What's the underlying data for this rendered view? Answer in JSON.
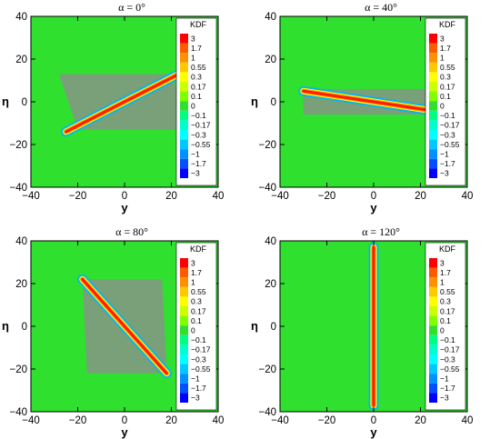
{
  "chart_data": [
    {
      "type": "heatmap",
      "title": "α = 0°",
      "xlabel": "y",
      "ylabel": "η",
      "xlim": [
        -40,
        40
      ],
      "ylim": [
        -40,
        40
      ],
      "xticks": [
        -40,
        -20,
        0,
        20,
        40
      ],
      "yticks": [
        -40,
        -20,
        0,
        20,
        40
      ],
      "xtick_labels": [
        "−40",
        "−20",
        "0",
        "20",
        "40"
      ],
      "ytick_labels": [
        "−40",
        "−20",
        "0",
        "20",
        "40"
      ],
      "background_value": 0,
      "band": {
        "from": [
          -25,
          -14
        ],
        "to": [
          25,
          14
        ]
      },
      "envelope": [
        [
          -28,
          13
        ],
        [
          20,
          13
        ],
        [
          28,
          -13
        ],
        [
          -20,
          -13
        ]
      ],
      "colorbar": {
        "title": "KDF",
        "levels": [
          "3",
          "1.7",
          "1",
          "0.55",
          "0.3",
          "0.17",
          "0.1",
          "0",
          "−0.1",
          "−0.17",
          "−0.3",
          "−0.55",
          "−1",
          "−1.7",
          "−3"
        ]
      }
    },
    {
      "type": "heatmap",
      "title": "α = 40°",
      "xlabel": "y",
      "ylabel": "η",
      "xlim": [
        -40,
        40
      ],
      "ylim": [
        -40,
        40
      ],
      "xticks": [
        -40,
        -20,
        0,
        20,
        40
      ],
      "yticks": [
        -40,
        -20,
        0,
        20,
        40
      ],
      "xtick_labels": [
        "−40",
        "−20",
        "0",
        "20",
        "40"
      ],
      "ytick_labels": [
        "−40",
        "−20",
        "0",
        "20",
        "40"
      ],
      "background_value": 0,
      "band": {
        "from": [
          -30,
          5
        ],
        "to": [
          30,
          -5
        ]
      },
      "envelope": [
        [
          -30,
          6
        ],
        [
          30,
          6
        ],
        [
          30,
          -6
        ],
        [
          -30,
          -6
        ]
      ],
      "colorbar": {
        "title": "KDF",
        "levels": [
          "3",
          "1.7",
          "1",
          "0.55",
          "0.3",
          "0.17",
          "0.1",
          "0",
          "−0.1",
          "−0.17",
          "−0.3",
          "−0.55",
          "−1",
          "−1.7",
          "−3"
        ]
      }
    },
    {
      "type": "heatmap",
      "title": "α = 80°",
      "xlabel": "y",
      "ylabel": "η",
      "xlim": [
        -40,
        40
      ],
      "ylim": [
        -40,
        40
      ],
      "xticks": [
        -40,
        -20,
        0,
        20,
        40
      ],
      "yticks": [
        -40,
        -20,
        0,
        20,
        40
      ],
      "xtick_labels": [
        "−40",
        "−20",
        "0",
        "20",
        "40"
      ],
      "ytick_labels": [
        "−40",
        "−20",
        "0",
        "20",
        "40"
      ],
      "background_value": 0,
      "band": {
        "from": [
          -18,
          22
        ],
        "to": [
          18,
          -22
        ]
      },
      "envelope": [
        [
          -18,
          22
        ],
        [
          16,
          22
        ],
        [
          18,
          -22
        ],
        [
          -16,
          -22
        ]
      ],
      "colorbar": {
        "title": "KDF",
        "levels": [
          "3",
          "1.7",
          "1",
          "0.55",
          "0.3",
          "0.17",
          "0.1",
          "0",
          "−0.1",
          "−0.17",
          "−0.3",
          "−0.55",
          "−1",
          "−1.7",
          "−3"
        ]
      }
    },
    {
      "type": "heatmap",
      "title": "α = 120°",
      "xlabel": "y",
      "ylabel": "η",
      "xlim": [
        -40,
        40
      ],
      "ylim": [
        -40,
        40
      ],
      "xticks": [
        -40,
        -20,
        0,
        20,
        40
      ],
      "yticks": [
        -40,
        -20,
        0,
        20,
        40
      ],
      "xtick_labels": [
        "−40",
        "−20",
        "0",
        "20",
        "40"
      ],
      "ytick_labels": [
        "−40",
        "−20",
        "0",
        "20",
        "40"
      ],
      "background_value": 0,
      "band": {
        "from": [
          0,
          37
        ],
        "to": [
          0,
          -37
        ]
      },
      "envelope": [
        [
          -1,
          37
        ],
        [
          1,
          37
        ],
        [
          1,
          -37
        ],
        [
          -1,
          -37
        ]
      ],
      "colorbar": {
        "title": "KDF",
        "levels": [
          "3",
          "1.7",
          "1",
          "0.55",
          "0.3",
          "0.17",
          "0.1",
          "0",
          "−0.1",
          "−0.17",
          "−0.3",
          "−0.55",
          "−1",
          "−1.7",
          "−3"
        ]
      }
    }
  ],
  "colors": {
    "background_green": "#2fe02f",
    "gray_envelope": "#8e8e8e",
    "band_core": "#ff1a00",
    "band_mid": "#ff9a00",
    "band_edge": "#00b4ff",
    "colorbar_colors": [
      "#ff0000",
      "#ff5a00",
      "#ff9000",
      "#ffc800",
      "#ffff00",
      "#ccff00",
      "#80ff00",
      "#2fe02f",
      "#00ff80",
      "#00ffcc",
      "#00ffff",
      "#00c8ff",
      "#0090ff",
      "#0050ff",
      "#0000ff"
    ]
  }
}
